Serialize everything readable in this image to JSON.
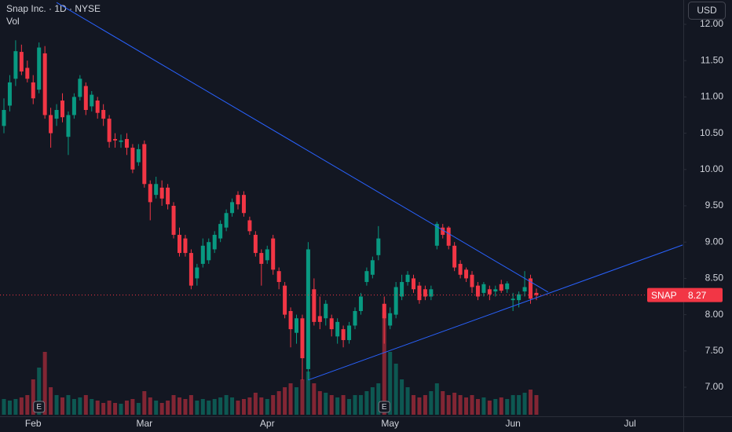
{
  "chart_data": {
    "type": "candlestick",
    "title": "Snap Inc. · 1D · NYSE",
    "volume_label": "Vol",
    "currency": "USD",
    "symbol": "SNAP",
    "up_color": "#089981",
    "down_color": "#f23645",
    "categories": [
      null,
      null,
      null,
      null,
      null,
      "Feb",
      null,
      null,
      null,
      null,
      null,
      null,
      null,
      null,
      null,
      null,
      null,
      null,
      null,
      null,
      null,
      null,
      null,
      null,
      "Mar",
      null,
      null,
      null,
      null,
      null,
      null,
      null,
      null,
      null,
      null,
      null,
      null,
      null,
      null,
      null,
      null,
      null,
      null,
      null,
      null,
      "Apr",
      null,
      null,
      null,
      null,
      null,
      null,
      null,
      null,
      null,
      null,
      null,
      null,
      null,
      null,
      null,
      null,
      null,
      null,
      null,
      null,
      "May",
      null,
      null,
      null,
      null,
      null,
      null,
      null,
      null,
      null,
      null,
      null,
      null,
      null,
      null,
      null,
      null,
      null,
      null,
      null,
      null,
      "Jun",
      null,
      null,
      null,
      null,
      null,
      null,
      null,
      null,
      null,
      null,
      null,
      null,
      null,
      null,
      null,
      null,
      null,
      null,
      null,
      "Jul",
      null,
      null,
      null,
      null,
      null,
      null,
      null,
      null,
      null
    ],
    "events": [
      null,
      null,
      null,
      null,
      null,
      null,
      "E",
      null,
      null,
      null,
      null,
      null,
      null,
      null,
      null,
      null,
      null,
      null,
      null,
      null,
      null,
      null,
      null,
      null,
      null,
      null,
      null,
      null,
      null,
      null,
      null,
      null,
      null,
      null,
      null,
      null,
      null,
      null,
      null,
      null,
      null,
      null,
      null,
      null,
      null,
      null,
      null,
      null,
      null,
      null,
      null,
      null,
      null,
      null,
      null,
      null,
      null,
      null,
      null,
      null,
      null,
      null,
      null,
      null,
      null,
      "E",
      null,
      null,
      null,
      null,
      null,
      null,
      null,
      null,
      null,
      null,
      null,
      null,
      null,
      null,
      null,
      null,
      null,
      null,
      null,
      null,
      null,
      null,
      null,
      null,
      null,
      null,
      null,
      null,
      null,
      null,
      null,
      null,
      null,
      null,
      null,
      null,
      null,
      null,
      null,
      null,
      null,
      null,
      null,
      null,
      null,
      null,
      null,
      null,
      null,
      null,
      null
    ],
    "open": [
      10.6,
      10.88,
      11.25,
      11.62,
      11.4,
      11.2,
      11.1,
      11.6,
      10.75,
      10.7,
      10.95,
      10.45,
      10.75,
      11.0,
      11.15,
      10.87,
      10.95,
      10.82,
      10.7,
      10.42,
      10.38,
      10.42,
      10.3,
      10.1,
      10.35,
      9.8,
      9.65,
      9.75,
      9.75,
      9.5,
      9.1,
      9.05,
      8.85,
      8.5,
      8.7,
      8.75,
      8.9,
      9.05,
      9.2,
      9.4,
      9.65,
      9.65,
      9.3,
      9.1,
      8.85,
      8.75,
      9.05,
      8.6,
      8.4,
      8.05,
      7.75,
      7.95,
      7.25,
      8.35,
      7.98,
      7.95,
      7.95,
      7.7,
      7.8,
      7.65,
      7.85,
      8.05,
      8.45,
      8.55,
      8.82,
      8.15,
      7.85,
      8.0,
      8.25,
      8.45,
      8.5,
      8.4,
      8.35,
      8.25,
      8.95,
      9.2,
      9.2,
      8.95,
      8.7,
      8.62,
      8.55,
      8.4,
      8.3,
      8.35,
      8.32,
      8.42,
      8.35,
      8.2,
      8.2,
      8.32,
      8.5,
      8.3,
      null,
      null,
      null,
      null,
      null,
      null,
      null,
      null,
      null,
      null,
      null,
      null,
      null,
      null,
      null,
      null,
      null,
      null,
      null,
      null,
      null,
      null,
      null,
      null,
      null
    ],
    "high": [
      10.98,
      11.3,
      11.78,
      11.72,
      11.5,
      11.3,
      11.75,
      11.7,
      10.85,
      10.9,
      11.05,
      10.8,
      11.05,
      11.3,
      11.2,
      11.08,
      11.0,
      10.9,
      10.75,
      10.5,
      10.48,
      10.5,
      10.35,
      10.35,
      10.4,
      9.85,
      9.9,
      9.85,
      9.8,
      9.55,
      9.2,
      9.1,
      8.9,
      8.7,
      9.05,
      9.05,
      9.15,
      9.3,
      9.45,
      9.6,
      9.7,
      9.7,
      9.35,
      9.15,
      8.9,
      8.95,
      9.1,
      8.65,
      8.45,
      8.1,
      8.0,
      8.0,
      9.0,
      8.5,
      8.25,
      8.2,
      8.0,
      7.95,
      7.85,
      7.9,
      8.1,
      8.3,
      8.65,
      8.8,
      9.22,
      8.25,
      8.1,
      8.45,
      8.55,
      8.6,
      8.55,
      8.45,
      8.4,
      8.4,
      9.28,
      9.25,
      9.22,
      9.0,
      8.75,
      8.65,
      8.6,
      8.45,
      8.45,
      8.4,
      8.4,
      8.48,
      8.46,
      8.3,
      8.32,
      8.6,
      8.55,
      8.36,
      null,
      null,
      null,
      null,
      null,
      null,
      null,
      null,
      null,
      null,
      null,
      null,
      null,
      null,
      null,
      null,
      null,
      null,
      null,
      null,
      null,
      null,
      null,
      null,
      null
    ],
    "low": [
      10.5,
      10.8,
      11.15,
      11.3,
      11.2,
      10.9,
      11.05,
      10.7,
      10.3,
      10.6,
      10.65,
      10.2,
      10.7,
      10.95,
      10.75,
      10.8,
      10.7,
      10.6,
      10.3,
      10.3,
      10.3,
      10.2,
      9.95,
      10.05,
      9.75,
      9.3,
      9.6,
      9.5,
      9.45,
      9.05,
      8.8,
      8.8,
      8.35,
      8.4,
      8.65,
      8.7,
      8.85,
      9.0,
      9.15,
      9.35,
      9.45,
      9.35,
      9.1,
      8.8,
      8.4,
      8.7,
      8.55,
      8.35,
      7.95,
      7.55,
      7.6,
      7.1,
      7.1,
      7.85,
      7.8,
      7.85,
      7.7,
      7.6,
      7.55,
      7.6,
      7.8,
      8.0,
      8.4,
      8.5,
      8.75,
      7.6,
      7.8,
      7.95,
      8.2,
      8.4,
      8.3,
      8.15,
      8.2,
      8.2,
      8.9,
      9.05,
      8.9,
      8.6,
      8.5,
      8.45,
      8.3,
      8.2,
      8.25,
      8.2,
      8.25,
      8.3,
      8.3,
      8.05,
      8.1,
      8.25,
      8.15,
      8.2,
      null,
      null,
      null,
      null,
      null,
      null,
      null,
      null,
      null,
      null,
      null,
      null,
      null,
      null,
      null,
      null,
      null,
      null,
      null,
      null,
      null,
      null,
      null,
      null,
      null
    ],
    "close": [
      10.82,
      11.2,
      11.63,
      11.35,
      11.25,
      10.98,
      11.68,
      10.75,
      10.5,
      10.82,
      10.72,
      10.75,
      11.0,
      11.25,
      10.82,
      11.03,
      10.78,
      10.7,
      10.38,
      10.4,
      10.4,
      10.3,
      10.0,
      10.28,
      9.8,
      9.55,
      9.8,
      9.6,
      9.52,
      9.1,
      8.85,
      8.85,
      8.4,
      8.65,
      8.95,
      9.0,
      9.1,
      9.25,
      9.4,
      9.55,
      9.52,
      9.4,
      9.15,
      8.85,
      8.7,
      8.9,
      8.62,
      8.45,
      8.0,
      7.8,
      7.95,
      7.4,
      8.9,
      7.9,
      7.9,
      8.15,
      7.8,
      7.9,
      7.65,
      7.85,
      8.05,
      8.25,
      8.6,
      8.75,
      9.05,
      7.95,
      8.02,
      8.38,
      8.45,
      8.55,
      8.35,
      8.2,
      8.25,
      8.35,
      9.25,
      9.1,
      8.95,
      8.65,
      8.55,
      8.5,
      8.38,
      8.25,
      8.42,
      8.28,
      8.35,
      8.33,
      8.43,
      8.22,
      8.28,
      8.38,
      8.22,
      8.27,
      null,
      null,
      null,
      null,
      null,
      null,
      null,
      null,
      null,
      null,
      null,
      null,
      null,
      null,
      null,
      null,
      null,
      null,
      null,
      null,
      null,
      null,
      null,
      null,
      null
    ],
    "volume": [
      20,
      18,
      20,
      22,
      25,
      45,
      60,
      80,
      35,
      25,
      22,
      25,
      20,
      22,
      25,
      20,
      18,
      15,
      18,
      15,
      14,
      18,
      20,
      15,
      30,
      22,
      18,
      15,
      18,
      25,
      22,
      20,
      25,
      18,
      20,
      18,
      20,
      22,
      25,
      22,
      18,
      20,
      22,
      28,
      22,
      20,
      25,
      30,
      35,
      40,
      35,
      45,
      55,
      40,
      30,
      28,
      25,
      22,
      25,
      20,
      25,
      25,
      30,
      35,
      40,
      130,
      80,
      65,
      45,
      35,
      25,
      22,
      25,
      30,
      40,
      30,
      25,
      28,
      25,
      22,
      25,
      20,
      22,
      18,
      20,
      22,
      20,
      25,
      25,
      28,
      32,
      25,
      null,
      null,
      null,
      null,
      null,
      null,
      null,
      null,
      null,
      null,
      null,
      null,
      null,
      null,
      null,
      null,
      null,
      null,
      null,
      null,
      null,
      null,
      null,
      null,
      null
    ],
    "trendlines": [
      {
        "color": "#2962ff",
        "from": {
          "bar": 9,
          "price": 12.3
        },
        "to": {
          "bar": 93,
          "price": 8.31
        }
      },
      {
        "color": "#2962ff",
        "from": {
          "bar": 52,
          "price": 7.1
        },
        "to": {
          "bar": 116,
          "price": 8.96
        }
      }
    ],
    "ylim": [
      6.6,
      12.335
    ],
    "yticks": [
      {
        "value": 7,
        "label": "7.00"
      },
      {
        "value": 7.5,
        "label": "7.50"
      },
      {
        "value": 8,
        "label": "8.00"
      },
      {
        "value": 8.5,
        "label": "8.50"
      },
      {
        "value": 9,
        "label": "9.00"
      },
      {
        "value": 9.5,
        "label": "9.50"
      },
      {
        "value": 10,
        "label": "10.00"
      },
      {
        "value": 10.5,
        "label": "10.50"
      },
      {
        "value": 11,
        "label": "11.00"
      },
      {
        "value": 11.5,
        "label": "11.50"
      },
      {
        "value": 12,
        "label": "12.00"
      }
    ]
  }
}
